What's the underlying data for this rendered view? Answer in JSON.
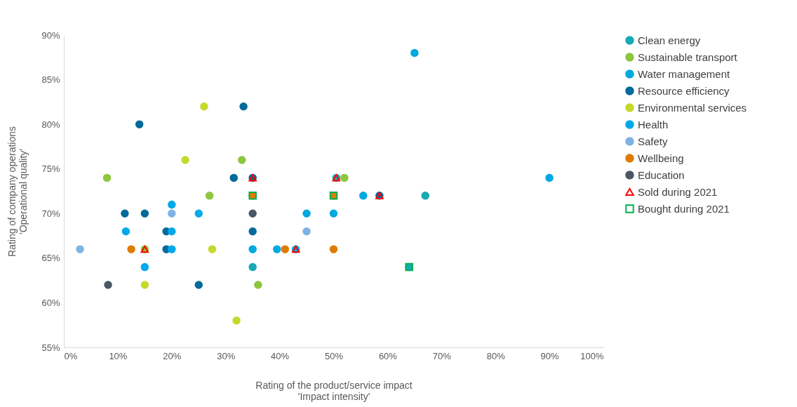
{
  "chart_data": {
    "type": "scatter",
    "xlabel": "Rating of the product/service impact\n'Impact intensity'",
    "ylabel": "Rating of company operations\n'Operational quality'",
    "legend": "right",
    "xlim": [
      0,
      100
    ],
    "xticks": [
      {
        "value": 0,
        "label": "0%"
      },
      {
        "value": 10,
        "label": "10%"
      },
      {
        "value": 20,
        "label": "20%"
      },
      {
        "value": 30,
        "label": "30%"
      },
      {
        "value": 40,
        "label": "40%"
      },
      {
        "value": 50,
        "label": "50%"
      },
      {
        "value": 60,
        "label": "60%"
      },
      {
        "value": 70,
        "label": "70%"
      },
      {
        "value": 80,
        "label": "80%"
      },
      {
        "value": 90,
        "label": "90%"
      },
      {
        "value": 100,
        "label": "100%"
      }
    ],
    "ylim": [
      55,
      90
    ],
    "yticks": [
      {
        "value": 55,
        "label": "55%"
      },
      {
        "value": 60,
        "label": "60%"
      },
      {
        "value": 65,
        "label": "65%"
      },
      {
        "value": 70,
        "label": "70%"
      },
      {
        "value": 75,
        "label": "75%"
      },
      {
        "value": 80,
        "label": "80%"
      },
      {
        "value": 85,
        "label": "85%"
      },
      {
        "value": 90,
        "label": "90%"
      }
    ],
    "series": [
      {
        "name": "Clean energy",
        "color": "#17a9b4",
        "marker": "circle",
        "x": [
          67,
          35,
          50.5,
          64
        ],
        "values": [
          72,
          64,
          74,
          64
        ]
      },
      {
        "name": "Sustainable transport",
        "color": "#8dc63f",
        "marker": "circle",
        "x": [
          8,
          27,
          33,
          52,
          36,
          15
        ],
        "values": [
          74,
          72,
          76,
          74,
          62,
          66
        ]
      },
      {
        "name": "Water management",
        "color": "#00a9e0",
        "marker": "circle",
        "x": [
          65,
          90,
          55.5,
          45,
          50,
          39.5,
          35,
          43
        ],
        "values": [
          88,
          74,
          72,
          70,
          70,
          66,
          66,
          66
        ]
      },
      {
        "name": "Resource efficiency",
        "color": "#006a9a",
        "marker": "circle",
        "x": [
          14,
          33.3,
          31.5,
          11.3,
          15,
          19,
          19,
          25,
          35,
          58.5,
          35
        ],
        "values": [
          80,
          82,
          74,
          70,
          70,
          68,
          66,
          62,
          74,
          72,
          68
        ]
      },
      {
        "name": "Environmental services",
        "color": "#c5d92d",
        "marker": "circle",
        "x": [
          26,
          22.5,
          27.5,
          15,
          32
        ],
        "values": [
          82,
          76,
          66,
          62,
          58
        ]
      },
      {
        "name": "Health",
        "color": "#00aaea",
        "marker": "circle",
        "x": [
          25,
          20,
          20,
          20,
          11.5,
          15
        ],
        "values": [
          70,
          71,
          68,
          66,
          68,
          64
        ]
      },
      {
        "name": "Safety",
        "color": "#7fb2e5",
        "marker": "circle",
        "x": [
          20,
          45,
          3
        ],
        "values": [
          70,
          68,
          66
        ]
      },
      {
        "name": "Wellbeing",
        "color": "#e07b00",
        "marker": "circle",
        "x": [
          12.5,
          41,
          50,
          35,
          50
        ],
        "values": [
          66,
          66,
          66,
          72,
          72
        ]
      },
      {
        "name": "Education",
        "color": "#4a5764",
        "marker": "circle",
        "x": [
          8.2,
          35
        ],
        "values": [
          62,
          70
        ]
      },
      {
        "name": "Sold during 2021",
        "color": "#ff0000",
        "marker": "triangle",
        "x": [
          15,
          35,
          50.5,
          58.5,
          43
        ],
        "values": [
          66,
          74,
          74,
          72,
          66
        ]
      },
      {
        "name": "Bought during 2021",
        "color": "#00b050",
        "marker": "square",
        "x": [
          35,
          50,
          64
        ],
        "values": [
          72,
          72,
          64
        ]
      }
    ]
  }
}
